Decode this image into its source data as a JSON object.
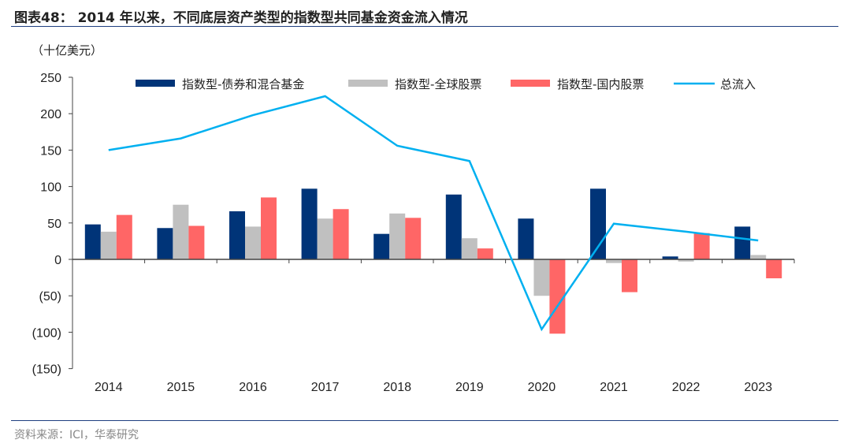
{
  "title": "图表48： 2014 年以来，不同底层资产类型的指数型共同基金资金流入情况",
  "source": "资料来源：ICI，华泰研究",
  "chart_data": {
    "type": "bar",
    "ylabel": "（十亿美元）",
    "ylim": [
      -150,
      250
    ],
    "yticks": [
      250,
      200,
      150,
      100,
      50,
      0,
      -50,
      -100,
      -150
    ],
    "ytick_labels": [
      "250",
      "200",
      "150",
      "100",
      "50",
      "0",
      "(50)",
      "(100)",
      "(150)"
    ],
    "categories": [
      "2014",
      "2015",
      "2016",
      "2017",
      "2018",
      "2019",
      "2020",
      "2021",
      "2022",
      "2023"
    ],
    "series": [
      {
        "name": "指数型-债券和混合基金",
        "type": "bar",
        "color": "#003478",
        "values": [
          48,
          43,
          66,
          97,
          35,
          89,
          56,
          97,
          4,
          45
        ]
      },
      {
        "name": "指数型-全球股票",
        "type": "bar",
        "color": "#c0c0c0",
        "values": [
          38,
          75,
          45,
          56,
          63,
          29,
          -50,
          -5,
          -3,
          6
        ]
      },
      {
        "name": "指数型-国内股票",
        "type": "bar",
        "color": "#ff6666",
        "values": [
          61,
          46,
          85,
          69,
          57,
          15,
          -102,
          -45,
          36,
          -26
        ]
      },
      {
        "name": "总流入",
        "type": "line",
        "color": "#00b0f0",
        "values": [
          150,
          166,
          198,
          224,
          156,
          135,
          -96,
          49,
          38,
          26
        ]
      }
    ],
    "legend": "top"
  }
}
